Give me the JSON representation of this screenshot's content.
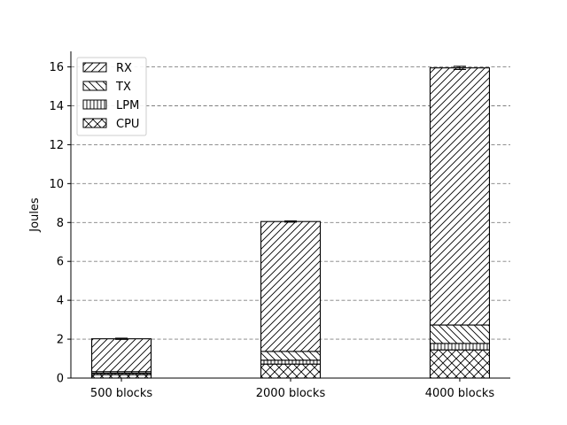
{
  "chart_data": {
    "type": "bar",
    "stacked": true,
    "title": "",
    "xlabel": "",
    "ylabel": "Joules",
    "ylim": [
      0,
      16.8
    ],
    "yticks": [
      0,
      2,
      4,
      6,
      8,
      10,
      12,
      14,
      16
    ],
    "grid": "horizontal dashed",
    "legend_position": "top-left",
    "categories": [
      "500 blocks",
      "2000 blocks",
      "4000 blocks"
    ],
    "series": [
      {
        "name": "CPU",
        "hatch": "cross",
        "values": [
          0.18,
          0.72,
          1.45
        ]
      },
      {
        "name": "LPM",
        "hatch": "vertical",
        "values": [
          0.07,
          0.2,
          0.33
        ]
      },
      {
        "name": "TX",
        "hatch": "backslash",
        "values": [
          0.08,
          0.45,
          0.95
        ]
      },
      {
        "name": "RX",
        "hatch": "slash",
        "values": [
          1.69,
          6.68,
          13.22
        ]
      }
    ],
    "totals": [
      2.02,
      8.05,
      15.95
    ],
    "error": [
      0.03,
      0.03,
      0.08
    ]
  }
}
